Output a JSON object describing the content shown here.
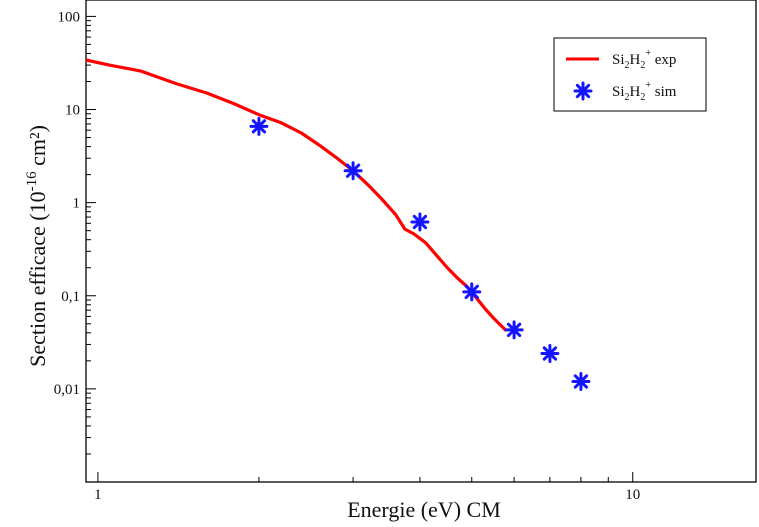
{
  "chart_data": {
    "type": "line",
    "xlabel": "Energie (eV) CM",
    "ylabel_main": "Section efficace (10",
    "ylabel_exp": "-16",
    "ylabel_unit": " cm²)",
    "x_scale": "log",
    "y_scale": "log",
    "xlim": [
      0.95,
      17
    ],
    "ylim": [
      0.001,
      150
    ],
    "x_ticks": [
      {
        "value": 1,
        "label": "1"
      },
      {
        "value": 10,
        "label": "10"
      }
    ],
    "y_ticks": [
      {
        "value": 0.01,
        "label": "0,01"
      },
      {
        "value": 0.1,
        "label": "0,1"
      },
      {
        "value": 1,
        "label": "1"
      },
      {
        "value": 10,
        "label": "10"
      },
      {
        "value": 100,
        "label": "100"
      }
    ],
    "grid": false,
    "legend_position": "top-right",
    "series": [
      {
        "name_parts": {
          "base1": "Si",
          "sub1": "2",
          "base2": "H",
          "sub2": "2",
          "sup": "+",
          "suffix": " exp"
        },
        "kind": "line",
        "color": "#ff0000",
        "x": [
          0.95,
          1.05,
          1.2,
          1.4,
          1.6,
          1.8,
          2.0,
          2.2,
          2.4,
          2.6,
          2.8,
          3.0,
          3.2,
          3.4,
          3.6,
          3.75,
          3.9,
          4.1,
          4.3,
          4.5,
          4.7,
          4.9,
          5.1,
          5.3,
          5.5,
          5.8
        ],
        "y": [
          34,
          30,
          26,
          19,
          15,
          11.5,
          8.8,
          7.2,
          5.6,
          4.1,
          3.0,
          2.2,
          1.55,
          1.08,
          0.75,
          0.52,
          0.46,
          0.37,
          0.27,
          0.2,
          0.155,
          0.125,
          0.095,
          0.072,
          0.057,
          0.042
        ]
      },
      {
        "name_parts": {
          "base1": "Si",
          "sub1": "2",
          "base2": "H",
          "sub2": "2",
          "sup": "+",
          "suffix": " sim"
        },
        "kind": "scatter",
        "marker": "asterisk",
        "color": "#1414ff",
        "x": [
          2.0,
          3.0,
          4.0,
          5.0,
          6.0,
          7.0,
          8.0
        ],
        "y": [
          6.6,
          2.2,
          0.62,
          0.11,
          0.043,
          0.024,
          0.012
        ]
      }
    ]
  }
}
